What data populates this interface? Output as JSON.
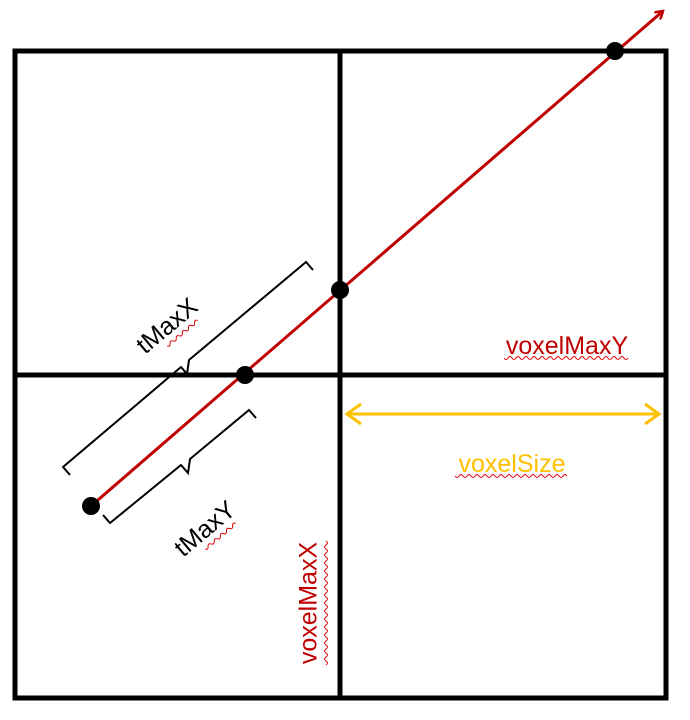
{
  "labels": {
    "t_max_x": "tMaxX",
    "t_max_y": "tMaxY",
    "voxel_max_y": "voxelMaxY",
    "voxel_max_x": "voxelMaxX",
    "voxel_size": "voxelSize"
  },
  "colors": {
    "grid": "#000000",
    "ray": "#c00000",
    "voxel_label": "#c00000",
    "voxel_size": "#ffc000",
    "text": "#000000"
  }
}
